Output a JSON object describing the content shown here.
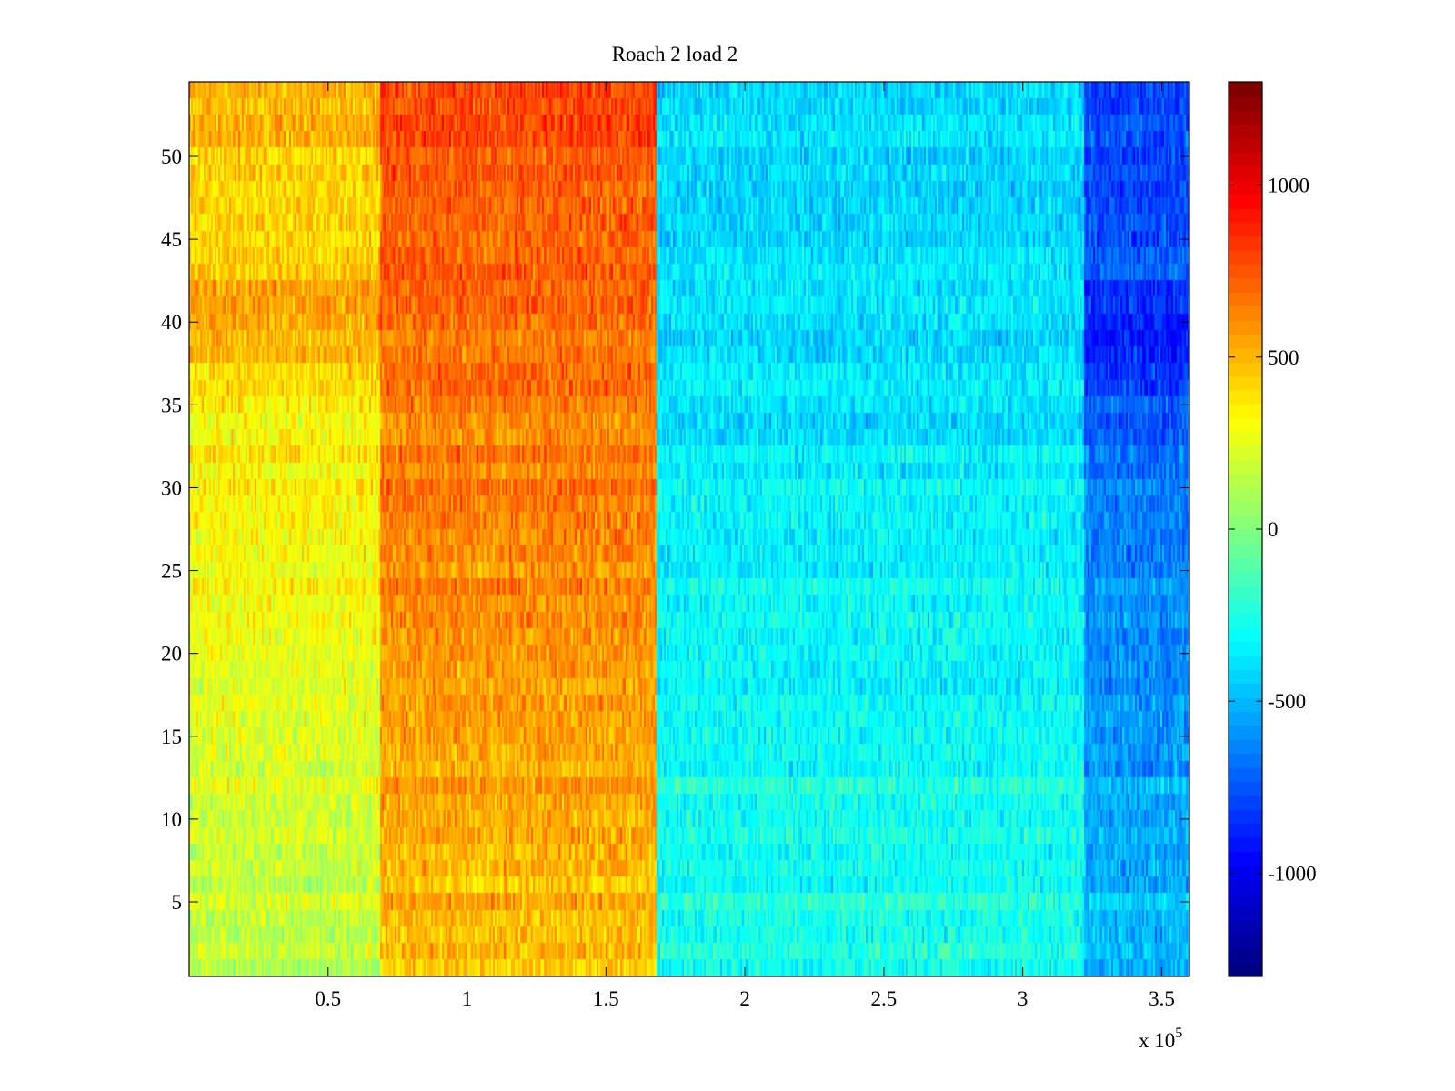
{
  "chart_data": {
    "type": "heatmap",
    "title": "Roach 2 load 2",
    "xlabel": "",
    "ylabel": "",
    "x_exponent_label": "x 10",
    "x_exponent_power": "5",
    "x_multiplier": 100000,
    "xlim": [
      0,
      360000
    ],
    "ylim": [
      0.5,
      54.5
    ],
    "rows": 54,
    "x_ticks": [
      {
        "value": 50000,
        "label": "0.5"
      },
      {
        "value": 100000,
        "label": "1"
      },
      {
        "value": 150000,
        "label": "1.5"
      },
      {
        "value": 200000,
        "label": "2"
      },
      {
        "value": 250000,
        "label": "2.5"
      },
      {
        "value": 300000,
        "label": "3"
      },
      {
        "value": 350000,
        "label": "3.5"
      }
    ],
    "y_ticks": [
      {
        "value": 5,
        "label": "5"
      },
      {
        "value": 10,
        "label": "10"
      },
      {
        "value": 15,
        "label": "15"
      },
      {
        "value": 20,
        "label": "20"
      },
      {
        "value": 25,
        "label": "25"
      },
      {
        "value": 30,
        "label": "30"
      },
      {
        "value": 35,
        "label": "35"
      },
      {
        "value": 40,
        "label": "40"
      },
      {
        "value": 45,
        "label": "45"
      },
      {
        "value": 50,
        "label": "50"
      }
    ],
    "colorbar": {
      "colormap": "jet",
      "clim": [
        -1300,
        1300
      ],
      "ticks": [
        {
          "value": 1000,
          "label": "1000"
        },
        {
          "value": 500,
          "label": "500"
        },
        {
          "value": 0,
          "label": "0"
        },
        {
          "value": -500,
          "label": "-500"
        },
        {
          "value": -1000,
          "label": "-1000"
        }
      ]
    },
    "bands": [
      {
        "x_start": 0,
        "x_end": 69000,
        "value_bottom": 150,
        "value_top": 500,
        "top_peak_rows": [
          38,
          42
        ],
        "top_peak_value": 700
      },
      {
        "x_start": 69000,
        "x_end": 168000,
        "value_bottom": 480,
        "value_top": 780
      },
      {
        "x_start": 168000,
        "x_end": 322000,
        "value_bottom": -250,
        "value_top": -420
      },
      {
        "x_start": 322000,
        "x_end": 361000,
        "value_bottom": -480,
        "value_top": -800,
        "top_peak_rows": [
          36,
          42
        ],
        "top_peak_value": -980
      }
    ]
  }
}
